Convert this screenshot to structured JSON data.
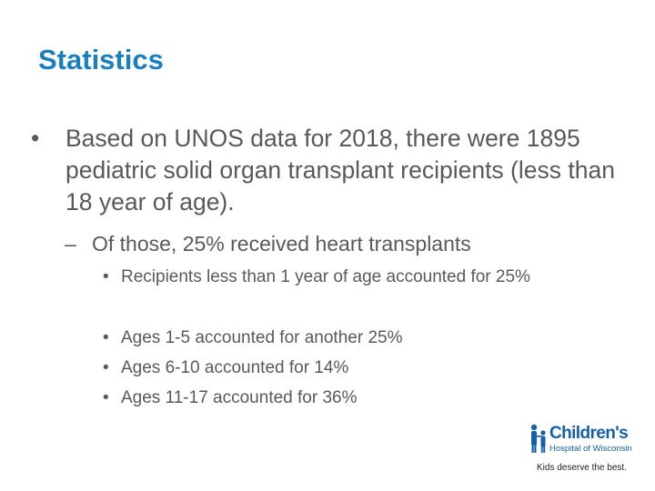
{
  "slide": {
    "title": "Statistics",
    "bullet_1": {
      "marker": "•",
      "text": "Based on UNOS data for 2018, there were 1895 pediatric solid organ transplant recipients (less than 18 year of age)."
    },
    "bullet_2": {
      "marker": "–",
      "text": "Of those, 25% received heart transplants"
    },
    "sub_bullets": [
      {
        "marker": "•",
        "text": "Recipients less than 1 year of age accounted for 25%"
      },
      {
        "marker": "•",
        "text": "Ages 1-5 accounted for another 25%"
      },
      {
        "marker": "•",
        "text": "Ages 6-10 accounted for 14%"
      },
      {
        "marker": "•",
        "text": "Ages 11-17 accounted for 36%"
      }
    ]
  },
  "logo": {
    "name": "Children's",
    "subtitle": "Hospital of Wisconsin",
    "tagline": "Kids deserve the best.",
    "color": "#1560a8",
    "icon": "family-figures-icon"
  },
  "colors": {
    "title": "#1a7fc1",
    "body_text": "#595959"
  }
}
